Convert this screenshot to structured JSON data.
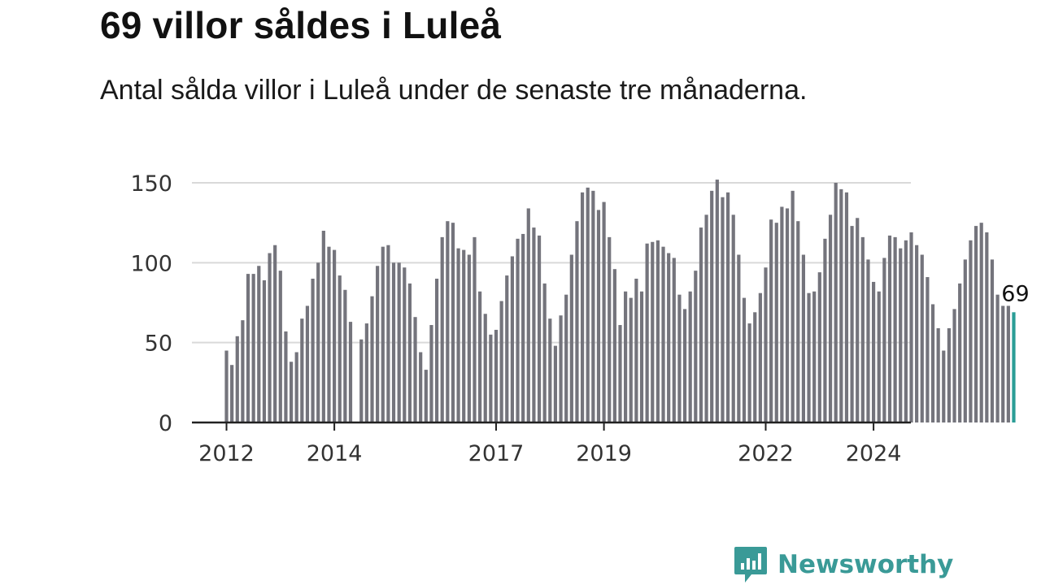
{
  "header": {
    "title": "69 villor såldes i Luleå",
    "subtitle": "Antal sålda villor i Luleå under de senaste tre månaderna."
  },
  "brand": {
    "name": "Newsworthy",
    "icon": "bar-chart-speech-icon",
    "color": "#3a9a97"
  },
  "chart_data": {
    "type": "bar",
    "title": "69 villor såldes i Luleå",
    "subtitle": "Antal sålda villor i Luleå under de senaste tre månaderna.",
    "xlabel": "",
    "ylabel": "",
    "ylim": [
      0,
      150
    ],
    "yticks": [
      0,
      50,
      100,
      150
    ],
    "ytick_labels": [
      "0",
      "50",
      "100",
      "150"
    ],
    "xticks": [
      {
        "label": "2012",
        "index": 0
      },
      {
        "label": "2014",
        "index": 20
      },
      {
        "label": "2017",
        "index": 50
      },
      {
        "label": "2019",
        "index": 70
      },
      {
        "label": "2022",
        "index": 100
      },
      {
        "label": "2024",
        "index": 120
      }
    ],
    "grid": true,
    "bar_color": "#74747c",
    "highlight_color": "#2a9d96",
    "highlight_label": "69",
    "values": [
      45,
      36,
      54,
      64,
      93,
      93,
      98,
      89,
      106,
      111,
      95,
      57,
      38,
      44,
      65,
      73,
      90,
      100,
      120,
      110,
      108,
      92,
      83,
      63,
      0,
      52,
      62,
      79,
      98,
      110,
      111,
      100,
      100,
      97,
      87,
      66,
      44,
      33,
      61,
      90,
      116,
      126,
      125,
      109,
      108,
      105,
      116,
      82,
      68,
      55,
      58,
      76,
      92,
      104,
      115,
      118,
      134,
      122,
      117,
      87,
      65,
      48,
      67,
      80,
      105,
      126,
      144,
      147,
      145,
      133,
      138,
      116,
      96,
      61,
      82,
      78,
      90,
      82,
      112,
      113,
      114,
      110,
      106,
      103,
      80,
      71,
      82,
      95,
      122,
      130,
      145,
      152,
      141,
      144,
      130,
      105,
      78,
      62,
      69,
      81,
      97,
      127,
      125,
      135,
      134,
      145,
      126,
      105,
      81,
      82,
      94,
      115,
      130,
      150,
      146,
      144,
      123,
      128,
      116,
      102,
      88,
      82,
      103,
      117,
      116,
      109,
      114,
      119,
      111,
      105,
      91,
      74,
      59,
      45,
      59,
      71,
      87,
      102,
      114,
      123,
      125,
      119,
      102,
      80,
      73,
      73,
      69
    ]
  }
}
